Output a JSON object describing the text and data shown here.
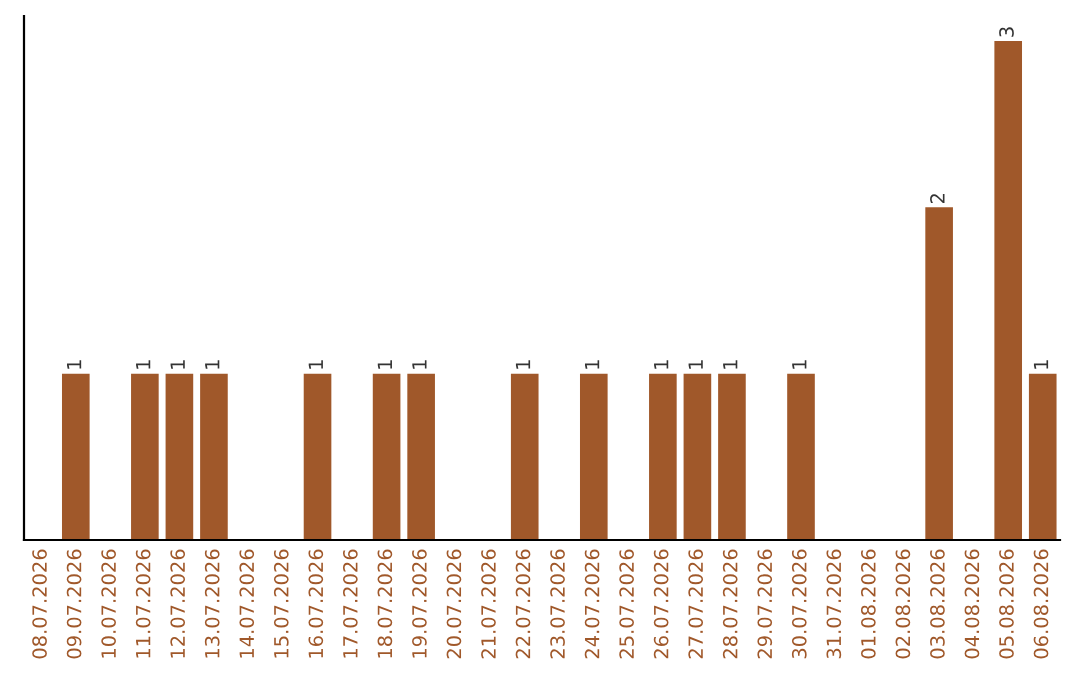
{
  "chart_data": {
    "type": "bar",
    "categories": [
      "08.07.2026",
      "09.07.2026",
      "10.07.2026",
      "11.07.2026",
      "12.07.2026",
      "13.07.2026",
      "14.07.2026",
      "15.07.2026",
      "16.07.2026",
      "17.07.2026",
      "18.07.2026",
      "19.07.2026",
      "20.07.2026",
      "21.07.2026",
      "22.07.2026",
      "23.07.2026",
      "24.07.2026",
      "25.07.2026",
      "26.07.2026",
      "27.07.2026",
      "28.07.2026",
      "29.07.2026",
      "30.07.2026",
      "31.07.2026",
      "01.08.2026",
      "02.08.2026",
      "03.08.2026",
      "04.08.2026",
      "05.08.2026",
      "06.08.2026"
    ],
    "values": [
      0,
      1,
      0,
      1,
      1,
      1,
      0,
      0,
      1,
      0,
      1,
      1,
      0,
      0,
      1,
      0,
      1,
      0,
      1,
      1,
      1,
      0,
      1,
      0,
      0,
      0,
      2,
      0,
      3,
      1
    ],
    "value_labels": [
      null,
      "1",
      null,
      "1",
      "1",
      "1",
      null,
      null,
      "1",
      null,
      "1",
      "1",
      null,
      null,
      "1",
      null,
      "1",
      null,
      "1",
      "1",
      "1",
      null,
      "1",
      null,
      null,
      null,
      "2",
      null,
      "3",
      "1"
    ],
    "color": "#a0582a",
    "grid": false,
    "legend": false
  }
}
